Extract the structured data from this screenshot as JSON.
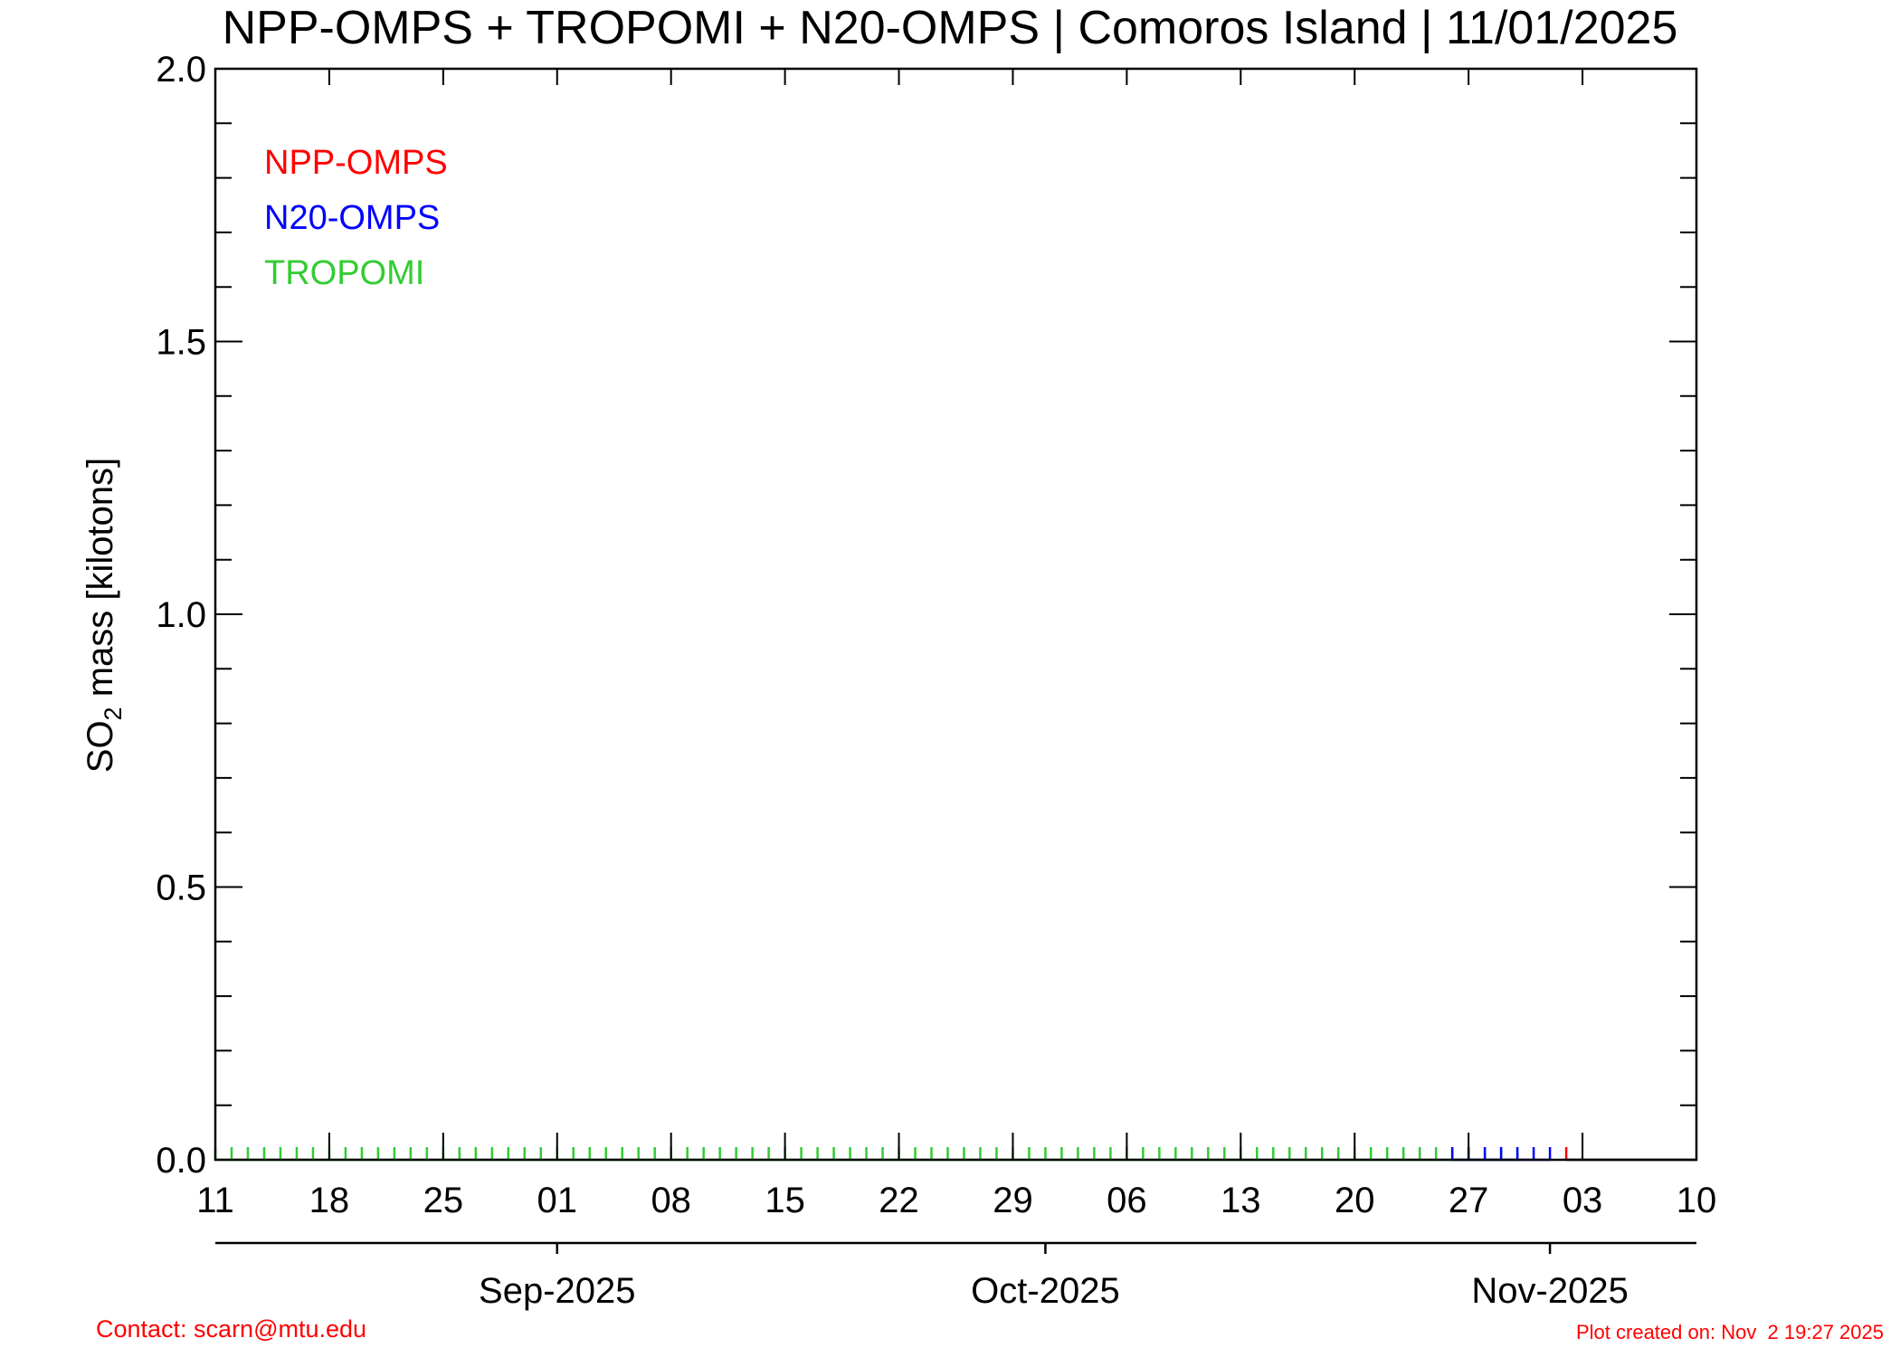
{
  "chart_data": {
    "type": "line",
    "title": "NPP-OMPS + TROPOMI + N20-OMPS | Comoros Island | 11/01/2025",
    "ylabel_main": "SO",
    "ylabel_sub": "2",
    "ylabel_rest": " mass [kilotons]",
    "ylim": [
      0.0,
      2.0
    ],
    "y_major_ticks": [
      0.0,
      0.5,
      1.0,
      1.5,
      2.0
    ],
    "y_tick_labels": [
      "0.0",
      "0.5",
      "1.0",
      "1.5",
      "2.0"
    ],
    "y_minor_step": 0.1,
    "x_start": "2025-08-11",
    "x_end": "2025-11-10",
    "x_tick_dates": [
      "2025-08-11",
      "2025-08-18",
      "2025-08-25",
      "2025-09-01",
      "2025-09-08",
      "2025-09-15",
      "2025-09-22",
      "2025-09-29",
      "2025-10-06",
      "2025-10-13",
      "2025-10-20",
      "2025-10-27",
      "2025-11-03",
      "2025-11-10"
    ],
    "x_tick_labels": [
      "11",
      "18",
      "25",
      "01",
      "08",
      "15",
      "22",
      "29",
      "06",
      "13",
      "20",
      "27",
      "03",
      "10"
    ],
    "month_axis": [
      {
        "date": "2025-09-01",
        "label": "Sep-2025"
      },
      {
        "date": "2025-10-01",
        "label": "Oct-2025"
      },
      {
        "date": "2025-11-01",
        "label": "Nov-2025"
      }
    ],
    "legend_position": "top-left",
    "series": [
      {
        "name": "NPP-OMPS",
        "color": "#ff0000",
        "start": "2025-11-02",
        "end": "2025-11-02",
        "value": 0.0
      },
      {
        "name": "N20-OMPS",
        "color": "#0000ff",
        "start": "2025-10-26",
        "end": "2025-11-01",
        "value": 0.0
      },
      {
        "name": "TROPOMI",
        "color": "#33cc33",
        "start": "2025-08-11",
        "end": "2025-10-30",
        "value": 0.0
      }
    ]
  },
  "footer": {
    "contact": "Contact: scarn@mtu.edu",
    "created": "Plot created on: Nov  2 19:27 2025"
  }
}
